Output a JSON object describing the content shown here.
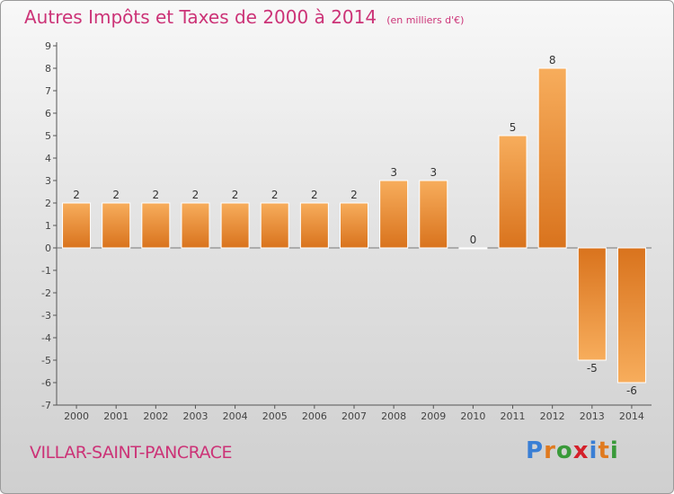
{
  "title": "Autres Impôts et Taxes de 2000 à 2014",
  "unit_note": "(en milliers d'€)",
  "commune": "VILLAR-SAINT-PANCRACE",
  "logo": {
    "letters": [
      "P",
      "r",
      "o",
      "x",
      "i",
      "t",
      "i"
    ],
    "colors": [
      "#3a7fd5",
      "#e07a1f",
      "#3a9a3a",
      "#d4202a",
      "#3a7fd5",
      "#e07a1f",
      "#3a9a3a"
    ]
  },
  "chart_data": {
    "type": "bar",
    "title": "Autres Impôts et Taxes de 2000 à 2014",
    "subtitle": "(en milliers d'€)",
    "categories": [
      "2000",
      "2001",
      "2002",
      "2003",
      "2004",
      "2005",
      "2006",
      "2007",
      "2008",
      "2009",
      "2010",
      "2011",
      "2012",
      "2013",
      "2014"
    ],
    "values": [
      2,
      2,
      2,
      2,
      2,
      2,
      2,
      2,
      3,
      3,
      0,
      5,
      8,
      -5,
      -6
    ],
    "value_labels": [
      "2",
      "2",
      "2",
      "2",
      "2",
      "2",
      "2",
      "2",
      "3",
      "3",
      "0",
      "5",
      "8",
      "-5",
      "-6"
    ],
    "ylim": [
      -7,
      9
    ],
    "yticks": [
      -7,
      -6,
      -5,
      -4,
      -3,
      -2,
      -1,
      0,
      1,
      2,
      3,
      4,
      5,
      6,
      7,
      8,
      9
    ],
    "ytick_labels": [
      "-7",
      "-6",
      "-5",
      "-4",
      "-3",
      "-2",
      "-1",
      "0",
      "1",
      "2",
      "3",
      "4",
      "5",
      "6",
      "7",
      "8",
      "9"
    ],
    "grid": false,
    "legend": "none",
    "bar_color": "#f0963c"
  }
}
